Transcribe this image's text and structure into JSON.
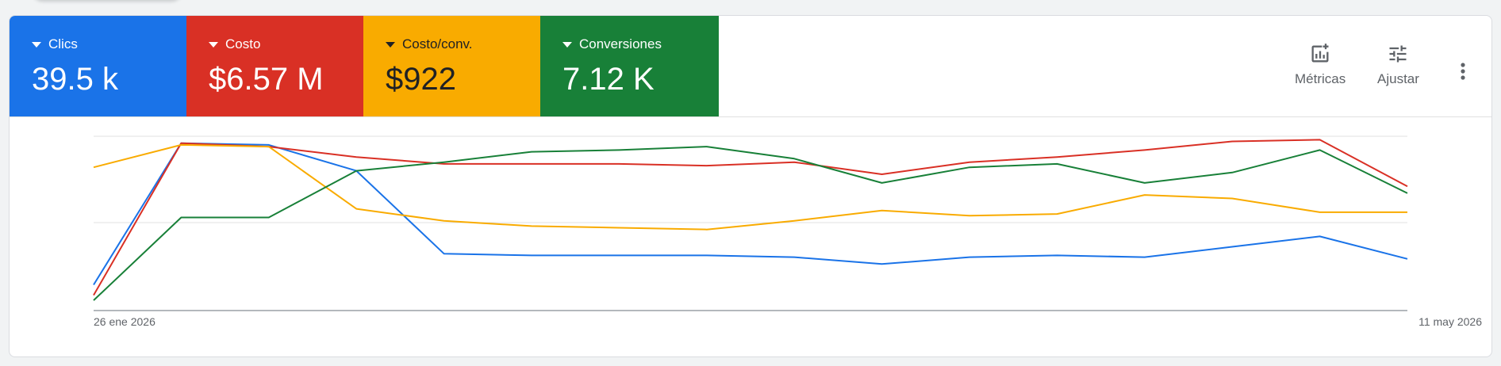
{
  "tiles": [
    {
      "label": "Clics",
      "value": "39.5 k",
      "color": "#1a73e8"
    },
    {
      "label": "Costo",
      "value": "$6.57 M",
      "color": "#d93025"
    },
    {
      "label": "Costo/conv.",
      "value": "$922",
      "color": "#f9ab00"
    },
    {
      "label": "Conversiones",
      "value": "7.12 K",
      "color": "#188038"
    }
  ],
  "toolbar": {
    "metrics_label": "Métricas",
    "metrics_icon": "add-chart-icon",
    "adjust_label": "Ajustar",
    "adjust_icon": "tune-sliders-icon",
    "more_icon": "more-vert-icon"
  },
  "chart_data": {
    "type": "line",
    "x_start_label": "26 ene 2026",
    "x_end_label": "11 may 2026",
    "grid": true,
    "normalized_scale": [
      0,
      100
    ],
    "series": [
      {
        "name": "Clics",
        "color": "#1a73e8",
        "values": [
          14,
          96,
          95,
          80,
          32,
          31,
          31,
          31,
          30,
          26,
          30,
          31,
          30,
          36,
          42,
          29
        ]
      },
      {
        "name": "Costo",
        "color": "#d93025",
        "values": [
          8,
          96,
          94,
          88,
          84,
          84,
          84,
          83,
          85,
          78,
          85,
          88,
          92,
          97,
          98,
          71
        ]
      },
      {
        "name": "Costo/conv.",
        "color": "#f9ab00",
        "values": [
          82,
          95,
          94,
          58,
          51,
          48,
          47,
          46,
          51,
          57,
          54,
          55,
          66,
          64,
          56,
          56
        ]
      },
      {
        "name": "Conversiones",
        "color": "#188038",
        "values": [
          5,
          53,
          53,
          80,
          85,
          91,
          92,
          94,
          87,
          73,
          82,
          84,
          73,
          79,
          92,
          67
        ]
      }
    ]
  }
}
